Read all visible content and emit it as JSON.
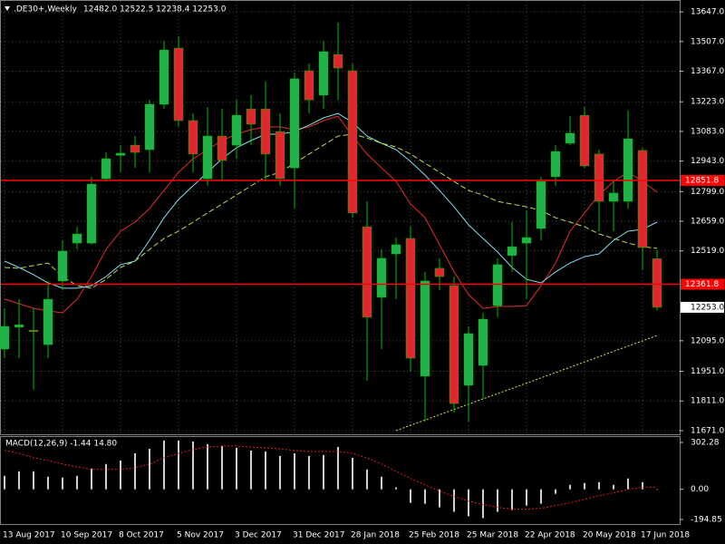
{
  "chart_data": [
    {
      "type": "candlestick",
      "title": ".DE30+,Weekly",
      "ohlc_text": "12482.0 12522.5 12238.4 12253.0",
      "categories": [
        "13 Aug 2017",
        null,
        null,
        null,
        "10 Sep 2017",
        null,
        null,
        null,
        "8 Oct 2017",
        null,
        null,
        null,
        "5 Nov 2017",
        null,
        null,
        null,
        "3 Dec 2017",
        null,
        null,
        null,
        "31 Dec 2017",
        null,
        null,
        null,
        "28 Jan 2018",
        null,
        null,
        null,
        "25 Feb 2018",
        null,
        null,
        null,
        "25 Mar 2018",
        null,
        null,
        null,
        "22 Apr 2018",
        null,
        null,
        null,
        "20 May 2018",
        null,
        null,
        null,
        "17 Jun 2018",
        null
      ],
      "open": [
        12056,
        12160,
        12145,
        12077,
        12377,
        12556,
        12556,
        12860,
        12970,
        13018,
        12997,
        13211,
        13476,
        13134,
        12860,
        13061,
        13018,
        13189,
        13189,
        13082,
        12911,
        13369,
        13254,
        13446,
        13369,
        12633,
        12300,
        12505,
        12578,
        11928,
        12437,
        12355,
        11885,
        11979,
        12261,
        12497,
        12556,
        12625,
        12869,
        13027,
        13159,
        12976,
        12753,
        12753,
        12993,
        12482.0
      ],
      "high": [
        12248,
        12291,
        12248,
        12377,
        12569,
        12633,
        12869,
        12984,
        13018,
        13061,
        13232,
        13510,
        13532,
        13168,
        13198,
        13189,
        13232,
        13254,
        13318,
        13168,
        13360,
        13403,
        13510,
        13596,
        13403,
        12753,
        12526,
        12582,
        12633,
        12420,
        12484,
        12398,
        12163,
        12227,
        12484,
        12655,
        12710,
        12869,
        13018,
        13155,
        13198,
        12997,
        12847,
        13181,
        13006,
        12522.5
      ],
      "low": [
        12013,
        12013,
        11864,
        12013,
        12334,
        12526,
        12548,
        12847,
        12890,
        12911,
        12890,
        13189,
        13104,
        12890,
        12826,
        12847,
        12954,
        13018,
        12847,
        12826,
        12719,
        13168,
        13189,
        13232,
        12676,
        11906,
        12056,
        12291,
        11949,
        11714,
        12334,
        11757,
        11714,
        11821,
        12206,
        12420,
        12291,
        12569,
        12826,
        13018,
        12911,
        12612,
        12612,
        12719,
        12428,
        12238.4
      ],
      "close": [
        12163,
        12170,
        12138,
        12291,
        12518,
        12599,
        12834,
        12954,
        12980,
        12984,
        13211,
        13467,
        13134,
        12976,
        13061,
        12946,
        13159,
        13117,
        12976,
        12860,
        13331,
        13232,
        13459,
        13382,
        12698,
        12206,
        12484,
        12548,
        12013,
        12377,
        12398,
        11799,
        12129,
        12197,
        12454,
        12539,
        12582,
        12847,
        12988,
        13074,
        12920,
        12753,
        12792,
        13048,
        12535,
        12253.0
      ],
      "up_color": "#22b14c",
      "down_color": "#e0262f",
      "wick_color": "#00c000",
      "series": [
        {
          "color": "#e52b2b",
          "dash": "solid",
          "values": [
            12291,
            12270,
            12248,
            12236,
            12227,
            12291,
            12398,
            12526,
            12612,
            12655,
            12719,
            12804,
            12890,
            12954,
            12997,
            13040,
            13070,
            13091,
            13104,
            13104,
            13091,
            13104,
            13134,
            13155,
            13061,
            12976,
            12911,
            12847,
            12740,
            12676,
            12548,
            12420,
            12313,
            12248,
            12257,
            12257,
            12261,
            12355,
            12462,
            12612,
            12698,
            12783,
            12847,
            12890,
            12847,
            12796
          ]
        },
        {
          "color": "#7fe0f0",
          "dash": "solid",
          "values": [
            12471,
            12441,
            12407,
            12368,
            12343,
            12343,
            12355,
            12398,
            12454,
            12471,
            12569,
            12676,
            12762,
            12826,
            12890,
            12954,
            13006,
            13040,
            13070,
            13070,
            13082,
            13112,
            13147,
            13168,
            13125,
            13061,
            13027,
            12997,
            12941,
            12877,
            12804,
            12727,
            12642,
            12578,
            12514,
            12441,
            12385,
            12368,
            12420,
            12462,
            12492,
            12505,
            12569,
            12612,
            12621,
            12655
          ]
        },
        {
          "color": "#b8e04a",
          "dash": "dashed",
          "values": [
            12441,
            12437,
            12450,
            12462,
            12398,
            12355,
            12343,
            12385,
            12441,
            12471,
            12526,
            12578,
            12612,
            12655,
            12698,
            12740,
            12783,
            12826,
            12869,
            12890,
            12933,
            12976,
            13018,
            13061,
            13070,
            13052,
            13027,
            13010,
            12976,
            12933,
            12890,
            12847,
            12804,
            12783,
            12753,
            12740,
            12727,
            12710,
            12676,
            12655,
            12633,
            12599,
            12578,
            12556,
            12539,
            12531
          ]
        },
        {
          "color": "#e8e850",
          "dash": "dotted",
          "values": [
            null,
            null,
            null,
            null,
            null,
            null,
            null,
            null,
            null,
            null,
            null,
            null,
            null,
            null,
            null,
            null,
            null,
            null,
            null,
            null,
            null,
            null,
            null,
            null,
            null,
            null,
            null,
            11671,
            11696,
            11721,
            11746,
            11771,
            11796,
            11821,
            11846,
            11870,
            11895,
            11920,
            11945,
            11970,
            11995,
            12020,
            12045,
            12070,
            12095,
            12120
          ]
        }
      ],
      "hlines": [
        {
          "value": 12851.8,
          "label": "12851.8",
          "color": "#ff0000"
        },
        {
          "value": 12361.8,
          "label": "12361.8",
          "color": "#ff0000"
        }
      ],
      "last_price": {
        "value": 12253.0,
        "label": "12253.0"
      },
      "ylim": [
        11658,
        13703
      ],
      "yticks": [
        {
          "value": 13647,
          "label": "13647.0"
        },
        {
          "value": 13507,
          "label": "13507.0"
        },
        {
          "value": 13367,
          "label": "13367.0"
        },
        {
          "value": 13223,
          "label": "13223.0"
        },
        {
          "value": 13083,
          "label": "13083.0"
        },
        {
          "value": 12943,
          "label": "12943.0"
        },
        {
          "value": 12799,
          "label": "12799.0"
        },
        {
          "value": 12659,
          "label": "12659.0"
        },
        {
          "value": 12519,
          "label": "12519.0"
        },
        {
          "value": 12095,
          "label": "12095.0"
        },
        {
          "value": 11951,
          "label": "11951.0"
        },
        {
          "value": 11811,
          "label": "11811.0"
        },
        {
          "value": 11671,
          "label": "11671.0"
        }
      ],
      "grid": true
    },
    {
      "type": "macd",
      "title": "MACD(12,26,9) -1.44 14.80",
      "values": [
        87,
        116,
        116,
        81,
        76,
        87,
        134,
        163,
        186,
        232,
        261,
        314,
        314,
        308,
        291,
        279,
        267,
        250,
        244,
        215,
        232,
        215,
        221,
        273,
        203,
        128,
        81,
        12,
        -87,
        -93,
        -116,
        -145,
        -174,
        -186,
        -145,
        -134,
        -105,
        -93,
        -29,
        29,
        41,
        46,
        29,
        70,
        46,
        -1.44
      ],
      "signal": [
        250,
        232,
        203,
        186,
        163,
        145,
        128,
        128,
        128,
        139,
        163,
        203,
        232,
        256,
        273,
        279,
        279,
        273,
        267,
        261,
        250,
        244,
        244,
        244,
        232,
        203,
        163,
        116,
        70,
        29,
        -12,
        -46,
        -76,
        -99,
        -116,
        -128,
        -128,
        -122,
        -105,
        -87,
        -64,
        -41,
        -23,
        0,
        12,
        14.8
      ],
      "color": "#d0d0d0",
      "signal_color": "#e02020",
      "ylim": [
        -224,
        343
      ],
      "yticks": [
        {
          "value": 302.28,
          "label": "302.28"
        },
        {
          "value": 0,
          "label": "0.00"
        },
        {
          "value": -194.85,
          "label": "-194.85"
        }
      ]
    }
  ]
}
